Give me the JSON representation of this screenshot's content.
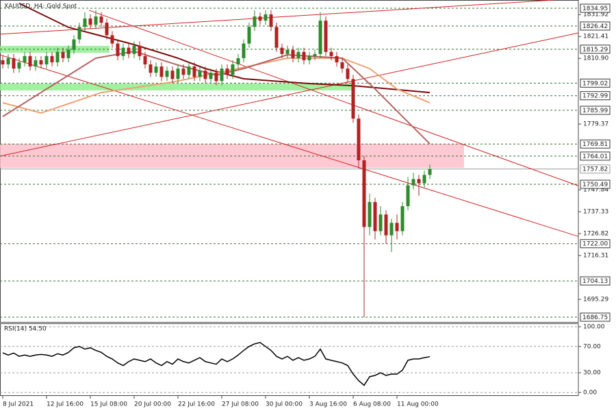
{
  "chart_data": [
    {
      "type": "candlestick",
      "title": "XAUUSD, H4: Gold Spot",
      "up_color": "#2e8b2e",
      "down_color": "#b22222",
      "xlim": [
        -0.5,
        105.125
      ],
      "ylim": [
        1684.45,
        1838.9
      ],
      "xticks": [
        {
          "value": 0,
          "label": "8 Jul 2021"
        },
        {
          "value": 8,
          "label": "12 Jul 16:00"
        },
        {
          "value": 16,
          "label": "15 Jul 08:00"
        },
        {
          "value": 24,
          "label": "20 Jul 00:00"
        },
        {
          "value": 32,
          "label": "22 Jul 16:00"
        },
        {
          "value": 40,
          "label": "27 Jul 08:00"
        },
        {
          "value": 48,
          "label": "30 Jul 00:00"
        },
        {
          "value": 56,
          "label": "3 Aug 16:00"
        },
        {
          "value": 64,
          "label": "6 Aug 08:00"
        },
        {
          "value": 72,
          "label": "11 Aug 00:00"
        }
      ],
      "yticks": [
        1831.92,
        1821.41,
        {
          "value": 1810.9,
          "label": "1810.90"
        },
        1779.37,
        1747.84,
        1737.33,
        1726.82,
        1716.31,
        1695.29
      ],
      "level_color": "#2f6f2f",
      "levels": [
        1834.95,
        1826.42,
        1815.29,
        1799.02,
        1792.99,
        1785.99,
        1769.81,
        1764.01,
        1750.49,
        {
          "value": 1722,
          "label": "1722.00"
        },
        1704.13,
        1686.75
      ],
      "current_price": 1757.82,
      "current_color": "#999999",
      "open": [
        1810,
        1808,
        1811,
        1806,
        1809,
        1812,
        1807,
        1810,
        1808,
        1812,
        1809,
        1814,
        1811,
        1815,
        1820,
        1826,
        1830,
        1827,
        1831,
        1828,
        1822,
        1818,
        1812,
        1816,
        1813,
        1817,
        1812,
        1808,
        1804,
        1807,
        1802,
        1805,
        1801,
        1806,
        1803,
        1807,
        1802,
        1805,
        1801,
        1804,
        1800,
        1806,
        1803,
        1808,
        1811,
        1818,
        1826,
        1831,
        1829,
        1832,
        1826,
        1816,
        1813,
        1815,
        1811,
        1814,
        1810,
        1812,
        1813,
        1829,
        1814,
        1812,
        1809,
        1806,
        1801,
        1782,
        1762,
        1730,
        1742,
        1728,
        1736,
        1726,
        1732,
        1728,
        1740,
        1750,
        1753,
        1751,
        1755
      ],
      "high": [
        1812,
        1813,
        1813,
        1811,
        1814,
        1814,
        1812,
        1812,
        1814,
        1814,
        1816,
        1816,
        1817,
        1822,
        1828,
        1833,
        1832,
        1834,
        1833,
        1830,
        1824,
        1820,
        1818,
        1818,
        1819,
        1819,
        1814,
        1810,
        1809,
        1809,
        1807,
        1807,
        1808,
        1808,
        1809,
        1809,
        1807,
        1807,
        1806,
        1806,
        1808,
        1808,
        1810,
        1813,
        1820,
        1828,
        1834,
        1833,
        1834,
        1834,
        1828,
        1818,
        1817,
        1817,
        1816,
        1816,
        1814,
        1815,
        1833,
        1831,
        1816,
        1814,
        1811,
        1808,
        1803,
        1784,
        1764,
        1746,
        1744,
        1740,
        1738,
        1734,
        1736,
        1742,
        1754,
        1756,
        1755,
        1757,
        1760
      ],
      "low": [
        1806,
        1806,
        1804,
        1804,
        1807,
        1805,
        1805,
        1806,
        1806,
        1807,
        1807,
        1809,
        1809,
        1813,
        1818,
        1824,
        1825,
        1825,
        1826,
        1820,
        1816,
        1810,
        1810,
        1811,
        1811,
        1810,
        1806,
        1802,
        1802,
        1800,
        1800,
        1799,
        1799,
        1801,
        1801,
        1800,
        1800,
        1799,
        1799,
        1798,
        1798,
        1801,
        1801,
        1806,
        1809,
        1816,
        1824,
        1827,
        1827,
        1824,
        1814,
        1811,
        1811,
        1809,
        1809,
        1808,
        1808,
        1810,
        1811,
        1812,
        1810,
        1807,
        1804,
        1799,
        1780,
        1758,
        1686.75,
        1726,
        1724,
        1726,
        1722,
        1718,
        1724,
        1726,
        1738,
        1748,
        1745,
        1749,
        1753
      ],
      "close": [
        1808,
        1811,
        1806,
        1809,
        1812,
        1807,
        1810,
        1808,
        1812,
        1809,
        1814,
        1811,
        1815,
        1820,
        1826,
        1830,
        1827,
        1831,
        1828,
        1822,
        1818,
        1812,
        1816,
        1813,
        1817,
        1812,
        1808,
        1804,
        1807,
        1802,
        1805,
        1801,
        1806,
        1803,
        1807,
        1802,
        1805,
        1801,
        1804,
        1800,
        1806,
        1803,
        1808,
        1811,
        1818,
        1826,
        1831,
        1829,
        1832,
        1826,
        1816,
        1813,
        1815,
        1811,
        1814,
        1810,
        1812,
        1813,
        1829,
        1814,
        1812,
        1809,
        1806,
        1801,
        1782,
        1762,
        1730,
        1742,
        1728,
        1736,
        1726,
        1732,
        1728,
        1740,
        1750,
        1753,
        1751,
        1755,
        1757.82
      ],
      "series": [
        {
          "color": "#7a0a0a",
          "x": [
            3,
            12,
            24,
            32,
            37,
            44,
            56,
            64,
            78
          ],
          "values": [
            1837.3,
            1825.8,
            1817.5,
            1811,
            1806,
            1801.1,
            1798.8,
            1797.8,
            1794.5
          ]
        },
        {
          "color": "#f0a070",
          "x": [
            0,
            7,
            18,
            31,
            43,
            52,
            62,
            67,
            72,
            78
          ],
          "values": [
            1789.6,
            1784.7,
            1794.5,
            1799.5,
            1806,
            1811,
            1811,
            1806,
            1796.2,
            1789.6
          ]
        },
        {
          "color": "#b86060",
          "x": [
            0,
            8,
            17,
            24,
            32,
            39,
            44,
            52,
            62,
            68,
            73,
            78
          ],
          "values": [
            1783,
            1796.2,
            1811,
            1814.3,
            1807.7,
            1802.8,
            1806,
            1812.6,
            1811,
            1796.2,
            1783,
            1769.9
          ]
        }
      ],
      "zones": [
        {
          "color": "#90ee90",
          "x": [
            -0.5,
            19.5
          ],
          "values": [
            1813.6,
            1816.9
          ]
        },
        {
          "color": "#90ee90",
          "x": [
            -0.5,
            63.9
          ],
          "values": [
            1795.5,
            1798.8
          ]
        },
        {
          "color": "#ffc0cb",
          "x": [
            -0.5,
            84.25
          ],
          "values": [
            1758.4,
            1769.9
          ]
        }
      ],
      "trendlines": [
        {
          "color": "#d42020",
          "x": [
            -0.5,
            100.75
          ],
          "values": [
            1822.5,
            1838.9
          ]
        },
        {
          "color": "#d42020",
          "x": [
            -0.5,
            105.1
          ],
          "values": [
            1764,
            1823.1
          ]
        },
        {
          "color": "#d42020",
          "x": [
            15.75,
            105.1
          ],
          "values": [
            1834,
            1749.8
          ]
        },
        {
          "color": "#d42020",
          "x": [
            -0.5,
            105.1
          ],
          "values": [
            1812.6,
            1725.5
          ]
        }
      ]
    },
    {
      "type": "line",
      "label": "RSI(14) 54.50",
      "color": "#000000",
      "ylim": [
        0,
        100
      ],
      "grid": true,
      "yticks": [
        {
          "value": 100,
          "label": "100.00"
        },
        {
          "value": 70,
          "label": "70.00"
        },
        {
          "value": 30,
          "label": "30.00"
        },
        {
          "value": 0,
          "label": "0.00"
        }
      ],
      "values": [
        60.4,
        57,
        60,
        55,
        57,
        55,
        57,
        58,
        57,
        55,
        59,
        57,
        61,
        68,
        70,
        66,
        68,
        64,
        61,
        55,
        51,
        45,
        41,
        47,
        51,
        49,
        47,
        51,
        45,
        41,
        47,
        43,
        51,
        47,
        45,
        49,
        53,
        47,
        45,
        43,
        51,
        47,
        51,
        57,
        64,
        70,
        74,
        76,
        70,
        64,
        55,
        51,
        55,
        49,
        53,
        49,
        51,
        55,
        66,
        51,
        49,
        47,
        45,
        41,
        28,
        18,
        11,
        24,
        26,
        30,
        26,
        28,
        28,
        34,
        49,
        51,
        51,
        53,
        54.5
      ]
    }
  ]
}
